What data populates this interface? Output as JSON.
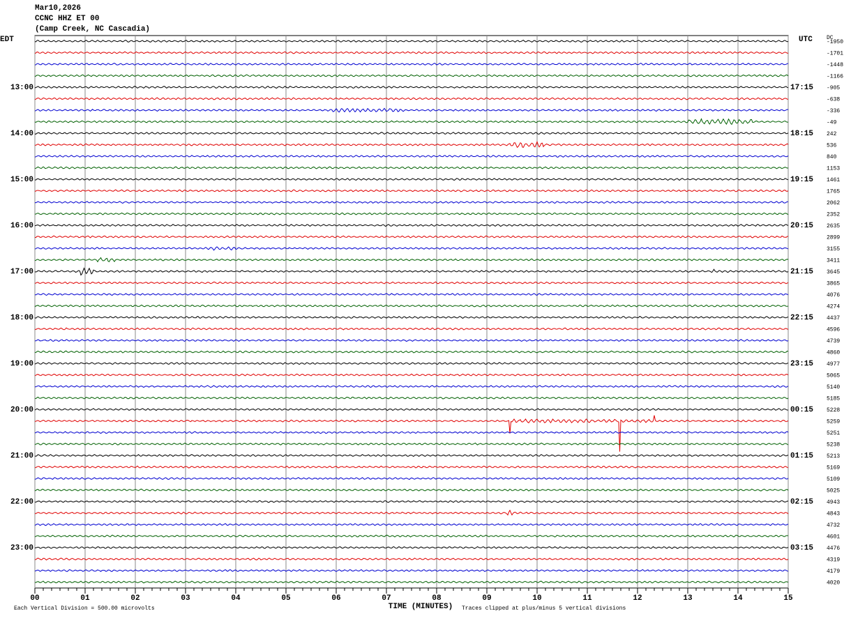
{
  "header": {
    "date": "Mar10,2026",
    "station": "CCNC HHZ ET 00",
    "location": "(Camp Creek, NC Cascadia)"
  },
  "left_axis": {
    "title": "EDT",
    "labels": [
      "13:00",
      "14:00",
      "15:00",
      "16:00",
      "17:00",
      "18:00",
      "19:00",
      "20:00",
      "21:00",
      "22:00",
      "23:00"
    ]
  },
  "right_axis": {
    "title": "UTC",
    "labels": [
      "17:15",
      "18:15",
      "19:15",
      "20:15",
      "21:15",
      "22:15",
      "23:15",
      "00:15",
      "01:15",
      "02:15",
      "03:15"
    ]
  },
  "dc": {
    "title": "DC",
    "values": [
      -1950,
      -1701,
      -1448,
      -1166,
      -905,
      -638,
      -336,
      -49,
      242,
      536,
      840,
      1153,
      1461,
      1765,
      2062,
      2352,
      2635,
      2899,
      3155,
      3411,
      3645,
      3865,
      4076,
      4274,
      4437,
      4596,
      4739,
      4860,
      4977,
      5065,
      5140,
      5185,
      5228,
      5259,
      5251,
      5238,
      5213,
      5169,
      5109,
      5025,
      4943,
      4843,
      4732,
      4601,
      4476,
      4319,
      4179,
      4020
    ]
  },
  "x_axis": {
    "labels": [
      "00",
      "01",
      "02",
      "03",
      "04",
      "05",
      "06",
      "07",
      "08",
      "09",
      "10",
      "11",
      "12",
      "13",
      "14",
      "15"
    ],
    "title": "TIME (MINUTES)"
  },
  "footer": {
    "scale": "Each Vertical Division =  500.00 microvolts",
    "clip": "Traces clipped at plus/minus 5 vertical divisions"
  }
}
